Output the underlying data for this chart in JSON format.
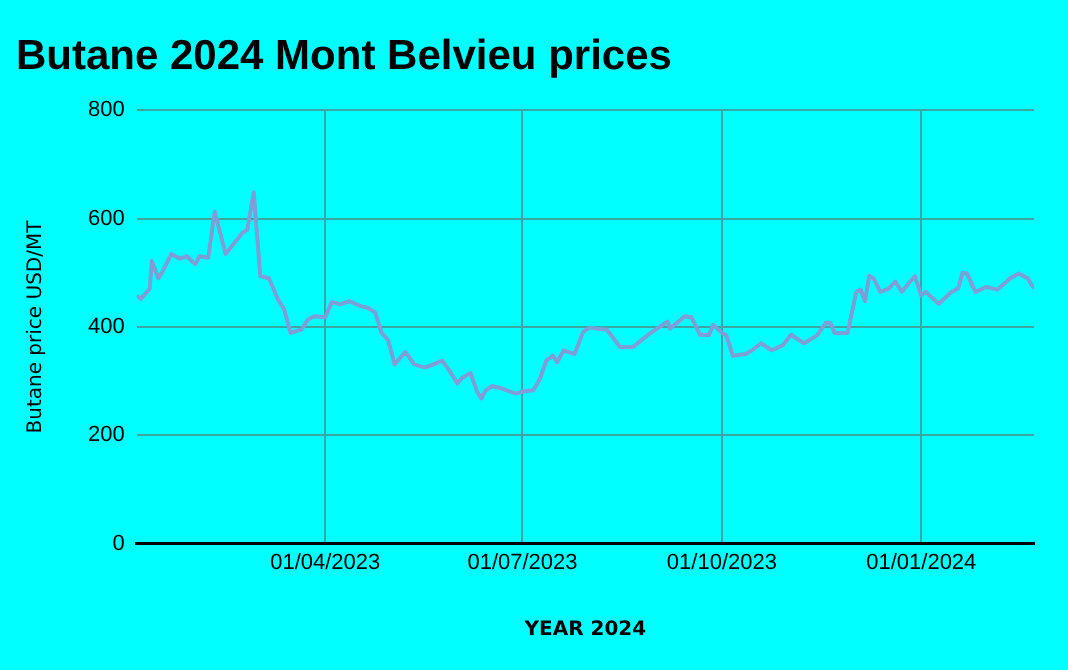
{
  "chart_data": {
    "type": "line",
    "title": "Butane 2024 Mont Belvieu prices",
    "xlabel": "YEAR 2024",
    "ylabel": "Butane price USD/MT",
    "xlim": [
      "2023-01-04",
      "2024-02-22"
    ],
    "xticks": [
      {
        "value": "2023-04-01",
        "label": "01/04/2023"
      },
      {
        "value": "2023-07-01",
        "label": "01/07/2023"
      },
      {
        "value": "2023-10-01",
        "label": "01/10/2023"
      },
      {
        "value": "2024-01-01",
        "label": "01/01/2024"
      }
    ],
    "ylim": [
      0,
      800
    ],
    "yticks": [
      0,
      200,
      400,
      600,
      800
    ],
    "grid": true,
    "legend": false,
    "marker": "none",
    "line_style": "solid",
    "x": [
      "2023-01-04",
      "2023-01-06",
      "2023-01-10",
      "2023-01-11",
      "2023-01-14",
      "2023-01-16",
      "2023-01-20",
      "2023-01-24",
      "2023-01-27",
      "2023-01-31",
      "2023-02-02",
      "2023-02-06",
      "2023-02-09",
      "2023-02-14",
      "2023-02-22",
      "2023-02-24",
      "2023-02-27",
      "2023-03-02",
      "2023-03-06",
      "2023-03-10",
      "2023-03-13",
      "2023-03-16",
      "2023-03-21",
      "2023-03-24",
      "2023-03-27",
      "2023-04-01",
      "2023-04-04",
      "2023-04-08",
      "2023-04-12",
      "2023-04-17",
      "2023-04-21",
      "2023-04-24",
      "2023-04-27",
      "2023-04-30",
      "2023-05-03",
      "2023-05-08",
      "2023-05-12",
      "2023-05-17",
      "2023-05-21",
      "2023-05-25",
      "2023-05-28",
      "2023-06-01",
      "2023-06-03",
      "2023-06-07",
      "2023-06-10",
      "2023-06-12",
      "2023-06-14",
      "2023-06-17",
      "2023-06-21",
      "2023-06-25",
      "2023-06-28",
      "2023-07-01",
      "2023-07-06",
      "2023-07-09",
      "2023-07-12",
      "2023-07-15",
      "2023-07-17",
      "2023-07-20",
      "2023-07-25",
      "2023-07-29",
      "2023-08-01",
      "2023-08-04",
      "2023-08-09",
      "2023-08-15",
      "2023-08-21",
      "2023-08-29",
      "2023-09-06",
      "2023-09-07",
      "2023-09-14",
      "2023-09-17",
      "2023-09-21",
      "2023-09-25",
      "2023-09-27",
      "2023-10-01",
      "2023-10-03",
      "2023-10-06",
      "2023-10-12",
      "2023-10-15",
      "2023-10-19",
      "2023-10-24",
      "2023-10-29",
      "2023-11-02",
      "2023-11-04",
      "2023-11-08",
      "2023-11-14",
      "2023-11-18",
      "2023-11-20",
      "2023-11-22",
      "2023-11-28",
      "2023-12-02",
      "2023-12-04",
      "2023-12-06",
      "2023-12-08",
      "2023-12-10",
      "2023-12-13",
      "2023-12-17",
      "2023-12-20",
      "2023-12-23",
      "2023-12-29",
      "2024-01-01",
      "2024-01-03",
      "2024-01-09",
      "2024-01-15",
      "2024-01-18",
      "2024-01-20",
      "2024-01-22",
      "2024-01-26",
      "2024-01-31",
      "2024-02-05",
      "2024-02-11",
      "2024-02-15",
      "2024-02-19",
      "2024-02-22"
    ],
    "series": [
      {
        "color": "#7b9fd6",
        "values": [
          458,
          452,
          471,
          522,
          490,
          503,
          535,
          526,
          531,
          516,
          531,
          528,
          613,
          535,
          575,
          579,
          649,
          494,
          490,
          452,
          433,
          389,
          395,
          414,
          420,
          418,
          446,
          442,
          448,
          439,
          435,
          427,
          389,
          376,
          331,
          354,
          331,
          325,
          331,
          338,
          321,
          296,
          306,
          315,
          281,
          268,
          283,
          291,
          287,
          281,
          277,
          281,
          283,
          304,
          338,
          347,
          335,
          357,
          350,
          391,
          399,
          397,
          395,
          363,
          363,
          389,
          410,
          397,
          420,
          418,
          385,
          385,
          404,
          389,
          385,
          347,
          350,
          357,
          370,
          357,
          366,
          386,
          380,
          370,
          385,
          408,
          408,
          389,
          389,
          465,
          469,
          448,
          494,
          490,
          465,
          471,
          484,
          465,
          494,
          458,
          465,
          443,
          465,
          471,
          500,
          499,
          465,
          474,
          469,
          490,
          499,
          490,
          471
        ]
      }
    ]
  }
}
